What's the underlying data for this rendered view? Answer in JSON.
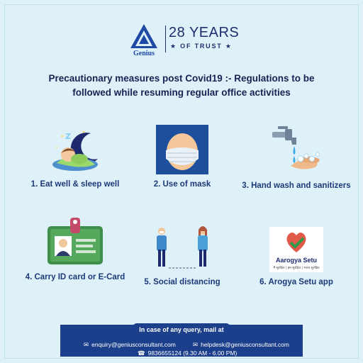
{
  "logo": {
    "brand": "Genius",
    "years": "28 YEARS",
    "trust": "★ OF TRUST ★"
  },
  "headline": {
    "line1": "Precautionary measures post Covid19 :- Regulations to be",
    "line2": "followed while resuming regular office activities"
  },
  "measures": [
    {
      "label": "1. Eat well & sleep well",
      "icon": "sleeping-child-icon"
    },
    {
      "label": "2.  Use of mask",
      "icon": "masked-face-icon"
    },
    {
      "label": "3. Hand wash and sanitizers",
      "icon": "hand-wash-icon"
    },
    {
      "label": "4. Carry ID card or E-Card",
      "icon": "id-card-icon"
    },
    {
      "label": "5. Social distancing",
      "icon": "social-distancing-icon"
    },
    {
      "label": "6. Arogya Setu app",
      "icon": "arogya-setu-icon"
    }
  ],
  "arogya": {
    "name": "Aarogya Setu",
    "tagline": "मैं सुरक्षित | हम सुरक्षित | भारत सुरक्षित"
  },
  "footer": {
    "title": "In case of any query, mail at",
    "email1": "enquiry@geniusconsultant.com",
    "email2": "helpdesk@geniusconsultant.com",
    "phone": "9836655124  (9.30 AM - 6.00 PM)"
  },
  "colors": {
    "background": "#dff1f8",
    "brand_blue": "#1e2d6d",
    "footer_blue": "#1c3f8c",
    "caption_blue": "#1c3a7a"
  }
}
